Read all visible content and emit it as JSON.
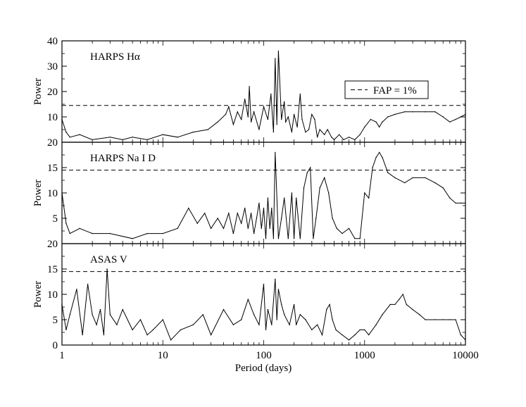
{
  "chart_data": [
    {
      "type": "line",
      "title": "HARPS Hα",
      "ylabel": "Power",
      "xscale": "log",
      "xlim": [
        1,
        10000
      ],
      "ylim": [
        0,
        40
      ],
      "yticks": [
        "20",
        "30",
        "40",
        "10"
      ],
      "ytick_values": [
        20,
        30,
        40,
        10
      ],
      "fap_level": 14.5,
      "legend": {
        "entry": "FAP = 1%",
        "position": "top-right"
      },
      "series": [
        {
          "x": [
            1,
            1.1,
            1.2,
            1.5,
            2,
            3,
            4,
            5,
            7,
            10,
            14,
            20,
            28,
            35,
            42,
            45,
            50,
            55,
            60,
            65,
            70,
            72,
            75,
            80,
            90,
            100,
            110,
            118,
            125,
            130,
            135,
            140,
            150,
            160,
            165,
            175,
            190,
            200,
            215,
            230,
            240,
            260,
            280,
            300,
            320,
            340,
            360,
            400,
            430,
            470,
            500,
            560,
            620,
            700,
            800,
            900,
            1000,
            1150,
            1300,
            1400,
            1500,
            1700,
            2000,
            2500,
            3000,
            4000,
            5000,
            6000,
            7000,
            8000,
            9000,
            10000
          ],
          "y": [
            9,
            4,
            2,
            3,
            1,
            2,
            1,
            2,
            1,
            3,
            2,
            4,
            5,
            8,
            11,
            14,
            7,
            12,
            9,
            17,
            10,
            22,
            8,
            12,
            5,
            14,
            9,
            19,
            4,
            33,
            7,
            36,
            9,
            16,
            8,
            10,
            4,
            11,
            6,
            19,
            9,
            4,
            5,
            11,
            9,
            2,
            5,
            3,
            5,
            2,
            1,
            3,
            1,
            2,
            1,
            3,
            6,
            9,
            8,
            6,
            8,
            10,
            11,
            12,
            12,
            12,
            12,
            10,
            8,
            9,
            10,
            11
          ]
        }
      ]
    },
    {
      "type": "line",
      "title": "HARPS Na I D",
      "ylabel": "Power",
      "xscale": "log",
      "xlim": [
        1,
        10000
      ],
      "ylim": [
        0,
        20
      ],
      "yticks": [
        "20",
        "15",
        "10",
        "5"
      ],
      "ytick_values": [
        20,
        15,
        10,
        5
      ],
      "fap_level": 14.5,
      "series": [
        {
          "x": [
            1,
            1.1,
            1.2,
            1.5,
            2,
            3,
            5,
            7,
            10,
            14,
            18,
            22,
            26,
            30,
            35,
            40,
            45,
            50,
            55,
            60,
            65,
            70,
            75,
            80,
            85,
            90,
            95,
            100,
            105,
            110,
            115,
            120,
            125,
            130,
            140,
            150,
            160,
            175,
            190,
            200,
            210,
            230,
            250,
            270,
            290,
            310,
            330,
            360,
            400,
            440,
            480,
            530,
            600,
            700,
            800,
            900,
            1000,
            1100,
            1200,
            1300,
            1400,
            1500,
            1700,
            2000,
            2500,
            3000,
            4000,
            5000,
            6000,
            7000,
            8000,
            9000,
            10000
          ],
          "y": [
            10,
            4,
            2,
            3,
            2,
            2,
            1,
            2,
            2,
            3,
            7,
            4,
            6,
            3,
            5,
            3,
            6,
            2,
            6,
            4,
            7,
            3,
            6,
            2,
            5,
            8,
            3,
            7,
            1,
            9,
            3,
            7,
            1,
            18,
            1,
            5,
            9,
            1,
            10,
            1,
            9,
            1,
            11,
            14,
            15,
            1,
            5,
            11,
            13,
            10,
            5,
            3,
            2,
            3,
            1,
            1,
            10,
            9,
            15,
            17,
            18,
            17,
            14,
            13,
            12,
            13,
            13,
            12,
            11,
            9,
            8,
            8,
            8
          ]
        }
      ]
    },
    {
      "type": "line",
      "title": "ASAS V",
      "ylabel": "Power",
      "xlabel": "Period (days)",
      "xscale": "log",
      "xlim": [
        1,
        10000
      ],
      "xticks": [
        "1",
        "10",
        "100",
        "1000",
        "10000"
      ],
      "xtick_values": [
        1,
        10,
        100,
        1000,
        10000
      ],
      "ylim": [
        0,
        20
      ],
      "yticks": [
        "20",
        "15",
        "10",
        "5",
        "0"
      ],
      "ytick_values": [
        20,
        15,
        10,
        5,
        0
      ],
      "fap_level": 14.5,
      "series": [
        {
          "x": [
            1,
            1.1,
            1.2,
            1.4,
            1.6,
            1.8,
            2,
            2.2,
            2.4,
            2.6,
            2.8,
            3,
            3.5,
            4,
            5,
            6,
            7,
            8,
            10,
            12,
            15,
            20,
            25,
            30,
            40,
            50,
            60,
            70,
            80,
            90,
            100,
            105,
            110,
            120,
            130,
            135,
            140,
            150,
            160,
            180,
            200,
            210,
            230,
            260,
            300,
            340,
            380,
            420,
            450,
            480,
            520,
            600,
            700,
            800,
            900,
            1000,
            1100,
            1300,
            1500,
            1800,
            2000,
            2200,
            2400,
            2600,
            3000,
            3500,
            4000,
            5000,
            6000,
            7000,
            8000,
            9000,
            10000
          ],
          "y": [
            8,
            3,
            6,
            11,
            2,
            12,
            6,
            4,
            7,
            2,
            15,
            6,
            4,
            7,
            3,
            5,
            2,
            3,
            5,
            1,
            3,
            4,
            6,
            2,
            7,
            4,
            5,
            9,
            6,
            4,
            12,
            3,
            7,
            4,
            13,
            5,
            11,
            8,
            6,
            4,
            8,
            4,
            6,
            5,
            3,
            4,
            2,
            7,
            8,
            5,
            3,
            2,
            1,
            2,
            3,
            3,
            2,
            4,
            6,
            8,
            8,
            9,
            10,
            8,
            7,
            6,
            5,
            5,
            5,
            5,
            5,
            2,
            1
          ]
        }
      ]
    }
  ]
}
